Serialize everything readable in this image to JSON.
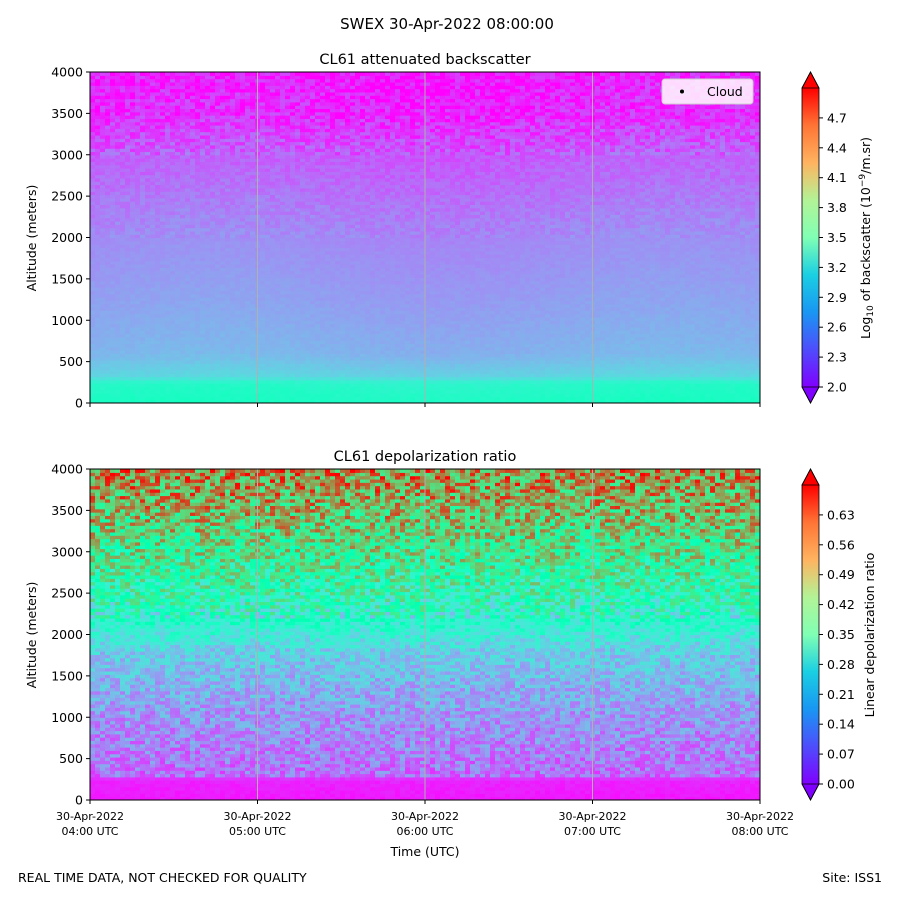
{
  "suptitle": "SWEX 30-Apr-2022 08:00:00",
  "footer_left": "REAL TIME DATA, NOT CHECKED FOR QUALITY",
  "footer_right": "Site: ISS1",
  "xlabel": "Time (UTC)",
  "chart_data": [
    {
      "type": "heatmap",
      "title": "CL61 attenuated backscatter",
      "ylabel": "Altitude (meters)",
      "ylim": [
        0,
        4000
      ],
      "yticks": [
        "0",
        "500",
        "1000",
        "1500",
        "2000",
        "2500",
        "3000",
        "3500",
        "4000"
      ],
      "xticks": [],
      "xlim": [
        "30-Apr-2022 04:00 UTC",
        "30-Apr-2022 08:00 UTC"
      ],
      "grid": "vertical",
      "colormap": "rainbow",
      "legend": {
        "label": "Cloud",
        "placement": "top-right",
        "marker": "dot"
      },
      "colorbar": {
        "label_prefix": "Log",
        "label_sub": "10",
        "label_mid": " of backscatter (10",
        "label_sup": "−9",
        "label_suffix": "/m.sr)",
        "range": [
          2.0,
          5.0
        ],
        "extend": "both",
        "ticks": [
          "2.0",
          "2.3",
          "2.6",
          "2.9",
          "3.2",
          "3.5",
          "3.8",
          "4.1",
          "4.4",
          "4.7"
        ]
      },
      "profile": [
        {
          "alt": 0,
          "value": 3.35
        },
        {
          "alt": 250,
          "value": 3.25
        },
        {
          "alt": 320,
          "value": 2.95
        },
        {
          "alt": 600,
          "value": 2.75
        },
        {
          "alt": 1200,
          "value": 2.65
        },
        {
          "alt": 2000,
          "value": 2.55
        },
        {
          "alt": 2500,
          "value": 2.45
        },
        {
          "alt": 3000,
          "value": 2.35
        },
        {
          "alt": 3500,
          "value": 2.15
        },
        {
          "alt": 4000,
          "value": 2.1
        }
      ]
    },
    {
      "type": "heatmap",
      "title": "CL61 depolarization ratio",
      "ylabel": "Altitude (meters)",
      "ylim": [
        0,
        4000
      ],
      "yticks": [
        "0",
        "500",
        "1000",
        "1500",
        "2000",
        "2500",
        "3000",
        "3500",
        "4000"
      ],
      "xticks": [
        {
          "date": "30-Apr-2022",
          "time": "04:00 UTC"
        },
        {
          "date": "30-Apr-2022",
          "time": "05:00 UTC"
        },
        {
          "date": "30-Apr-2022",
          "time": "06:00 UTC"
        },
        {
          "date": "30-Apr-2022",
          "time": "07:00 UTC"
        },
        {
          "date": "30-Apr-2022",
          "time": "08:00 UTC"
        }
      ],
      "xlim": [
        "30-Apr-2022 04:00 UTC",
        "30-Apr-2022 08:00 UTC"
      ],
      "grid": "vertical",
      "colormap": "rainbow",
      "colorbar": {
        "label": "Linear depolarization ratio",
        "range": [
          0.0,
          0.7
        ],
        "extend": "both",
        "ticks": [
          "0.00",
          "0.07",
          "0.14",
          "0.21",
          "0.28",
          "0.35",
          "0.42",
          "0.49",
          "0.56",
          "0.63"
        ]
      },
      "profile": [
        {
          "alt": 0,
          "value": 0.02
        },
        {
          "alt": 250,
          "value": 0.03
        },
        {
          "alt": 300,
          "value": 0.1
        },
        {
          "alt": 1000,
          "value": 0.14
        },
        {
          "alt": 1800,
          "value": 0.21
        },
        {
          "alt": 2300,
          "value": 0.33
        },
        {
          "alt": 3000,
          "value": 0.44
        },
        {
          "alt": 3500,
          "value": 0.52
        },
        {
          "alt": 4000,
          "value": 0.58
        }
      ]
    }
  ]
}
